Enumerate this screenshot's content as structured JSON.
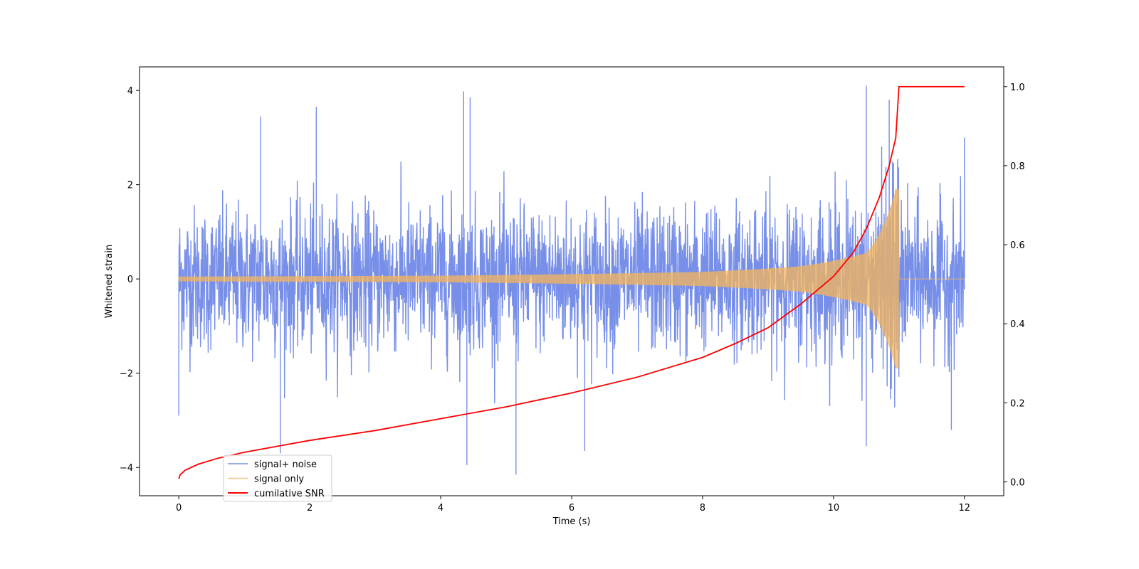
{
  "chart_data": {
    "type": "line",
    "title": "",
    "xlabel": "Time (s)",
    "ylabel": "Whitened strain",
    "y2label": "",
    "xlim": [
      -0.6,
      12.6
    ],
    "ylim": [
      -4.6,
      4.5
    ],
    "y2lim": [
      -0.035,
      1.05
    ],
    "x_ticks": [
      0,
      2,
      4,
      6,
      8,
      10,
      12
    ],
    "y_ticks": [
      -4,
      -2,
      0,
      2,
      4
    ],
    "y2_ticks": [
      0.0,
      0.2,
      0.4,
      0.6,
      0.8,
      1.0
    ],
    "grid": false,
    "legend_position": "lower-left",
    "series": [
      {
        "name": "signal+ noise",
        "axis": "left",
        "color": "#6b86e6",
        "style": "noisy strain, roughly ±2 with spikes to ±4 over 0–12 s",
        "noise_envelope": 2.0,
        "spikes": [
          {
            "x": 1.25,
            "y": 3.45
          },
          {
            "x": 2.1,
            "y": 3.65
          },
          {
            "x": 4.35,
            "y": 3.98
          },
          {
            "x": 4.45,
            "y": 3.85
          },
          {
            "x": 10.5,
            "y": 4.1
          },
          {
            "x": 10.85,
            "y": 3.8
          },
          {
            "x": 1.55,
            "y": -3.7
          },
          {
            "x": 4.4,
            "y": -3.95
          },
          {
            "x": 5.15,
            "y": -4.15
          },
          {
            "x": 6.2,
            "y": -3.65
          },
          {
            "x": 10.5,
            "y": -3.55
          },
          {
            "x": 0.0,
            "y": -2.9
          },
          {
            "x": 12.0,
            "y": 3.0
          },
          {
            "x": 11.8,
            "y": -3.2
          }
        ]
      },
      {
        "name": "signal only",
        "axis": "left",
        "color": "#f5b45a",
        "style": "chirp oscillation; amplitude grows toward merger at 11 s then drops to 0",
        "merger_time": 11.0,
        "amplitude_points": [
          {
            "x": 0,
            "amp": 0.05
          },
          {
            "x": 4,
            "amp": 0.07
          },
          {
            "x": 8,
            "amp": 0.15
          },
          {
            "x": 9.5,
            "amp": 0.27
          },
          {
            "x": 10.5,
            "amp": 0.55
          },
          {
            "x": 10.95,
            "amp": 1.9
          }
        ]
      },
      {
        "name": "cumilative SNR",
        "axis": "right",
        "color": "#ff0000",
        "x": [
          0.0,
          0.02,
          0.1,
          0.3,
          0.6,
          1.0,
          1.5,
          2.0,
          3.0,
          4.0,
          5.0,
          6.0,
          7.0,
          8.0,
          8.5,
          9.0,
          9.5,
          10.0,
          10.3,
          10.5,
          10.7,
          10.85,
          10.95,
          11.0,
          12.0
        ],
        "values": [
          0.008,
          0.018,
          0.03,
          0.045,
          0.06,
          0.075,
          0.09,
          0.105,
          0.13,
          0.16,
          0.19,
          0.225,
          0.265,
          0.315,
          0.35,
          0.39,
          0.45,
          0.52,
          0.58,
          0.64,
          0.72,
          0.8,
          0.87,
          1.0,
          1.0
        ]
      }
    ]
  }
}
